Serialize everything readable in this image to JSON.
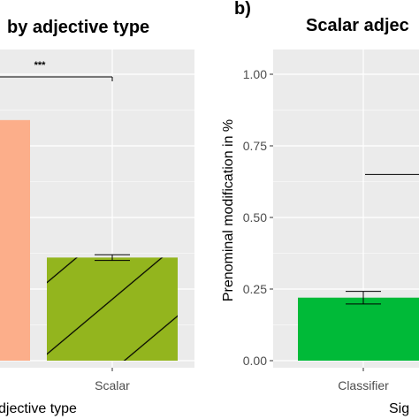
{
  "chart_data": [
    {
      "type": "bar",
      "panel_label": "",
      "title": "by adjective type",
      "xlabel": "djective type",
      "ylabel": "",
      "ylim": [
        0,
        1.1
      ],
      "categories": [
        "",
        "Scalar"
      ],
      "values": [
        0.84,
        0.36
      ],
      "error": [
        null,
        0.02
      ],
      "bar_colors": [
        "#FCAE8A",
        "#93B51E"
      ],
      "hatched": [
        false,
        true
      ],
      "significance": "***",
      "grid": true
    },
    {
      "type": "bar",
      "panel_label": "b)",
      "title": "Scalar adjec",
      "xlabel": "Sig",
      "ylabel": "Prenominal modification in %",
      "ylim": [
        0,
        1.1
      ],
      "y_ticks": [
        "0.00",
        "0.25",
        "0.50",
        "0.75",
        "1.00"
      ],
      "y_tick_values": [
        0,
        0.25,
        0.5,
        0.75,
        1.0
      ],
      "categories": [
        "Classifier"
      ],
      "values": [
        0.22
      ],
      "error": [
        0.022
      ],
      "bar_colors": [
        "#00BA38"
      ],
      "significance_line_y": 0.65,
      "grid": true
    }
  ]
}
